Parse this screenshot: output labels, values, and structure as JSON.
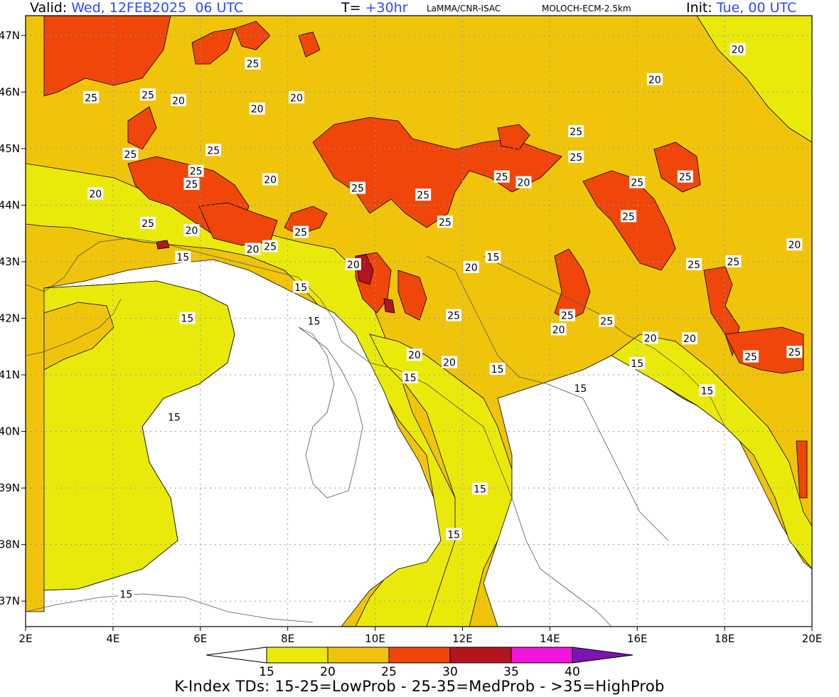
{
  "header": {
    "valid_label": "Valid:",
    "valid_value": "Wed, 12FEB2025  06 UTC",
    "t_label": "T=",
    "t_value": "+30hr",
    "source": "LaMMA/CNR-ISAC",
    "model": "MOLOCH-ECM-2.5km",
    "init_label": "Init:",
    "init_value": "Tue, 00 UTC"
  },
  "axes": {
    "lon_ticks": [
      "2E",
      "4E",
      "6E",
      "8E",
      "10E",
      "12E",
      "14E",
      "16E",
      "18E",
      "20E"
    ],
    "lat_ticks": [
      "47N",
      "46N",
      "45N",
      "44N",
      "43N",
      "42N",
      "41N",
      "40N",
      "39N",
      "38N",
      "37N"
    ]
  },
  "colorbar": {
    "ticks": [
      "15",
      "20",
      "25",
      "30",
      "35",
      "40"
    ],
    "colors": [
      "#ffffff",
      "#eaea0a",
      "#f0c40a",
      "#f0460a",
      "#b4141e",
      "#f014dc",
      "#7c14b4"
    ]
  },
  "contour_labels": [
    {
      "t": "25",
      "lon": 3.5,
      "lat": 45.9
    },
    {
      "t": "25",
      "lon": 4.8,
      "lat": 45.95
    },
    {
      "t": "20",
      "lon": 5.5,
      "lat": 45.85
    },
    {
      "t": "25",
      "lon": 7.2,
      "lat": 46.5
    },
    {
      "t": "20",
      "lon": 7.3,
      "lat": 45.7
    },
    {
      "t": "20",
      "lon": 8.2,
      "lat": 45.9
    },
    {
      "t": "25",
      "lon": 4.4,
      "lat": 44.9
    },
    {
      "t": "25",
      "lon": 6.3,
      "lat": 44.97
    },
    {
      "t": "25",
      "lon": 5.9,
      "lat": 44.6
    },
    {
      "t": "25",
      "lon": 5.8,
      "lat": 44.37
    },
    {
      "t": "20",
      "lon": 3.6,
      "lat": 44.2
    },
    {
      "t": "20",
      "lon": 7.6,
      "lat": 44.45
    },
    {
      "t": "25",
      "lon": 4.8,
      "lat": 43.68
    },
    {
      "t": "20",
      "lon": 5.8,
      "lat": 43.55
    },
    {
      "t": "25",
      "lon": 7.6,
      "lat": 43.27
    },
    {
      "t": "20",
      "lon": 7.2,
      "lat": 43.22
    },
    {
      "t": "25",
      "lon": 8.3,
      "lat": 43.52
    },
    {
      "t": "25",
      "lon": 9.6,
      "lat": 44.3
    },
    {
      "t": "25",
      "lon": 11.1,
      "lat": 44.18
    },
    {
      "t": "25",
      "lon": 11.6,
      "lat": 43.7
    },
    {
      "t": "20",
      "lon": 9.5,
      "lat": 42.95
    },
    {
      "t": "15",
      "lon": 5.6,
      "lat": 43.08
    },
    {
      "t": "15",
      "lon": 8.3,
      "lat": 42.55
    },
    {
      "t": "15",
      "lon": 5.7,
      "lat": 42
    },
    {
      "t": "15",
      "lon": 8.6,
      "lat": 41.95
    },
    {
      "t": "25",
      "lon": 12.9,
      "lat": 44.5
    },
    {
      "t": "25",
      "lon": 14.6,
      "lat": 45.3
    },
    {
      "t": "25",
      "lon": 14.6,
      "lat": 44.85
    },
    {
      "t": "20",
      "lon": 13.4,
      "lat": 44.4
    },
    {
      "t": "20",
      "lon": 12.2,
      "lat": 42.9
    },
    {
      "t": "15",
      "lon": 12.7,
      "lat": 43.08
    },
    {
      "t": "25",
      "lon": 11.8,
      "lat": 42.05
    },
    {
      "t": "20",
      "lon": 10.9,
      "lat": 41.35
    },
    {
      "t": "20",
      "lon": 11.7,
      "lat": 41.22
    },
    {
      "t": "15",
      "lon": 10.8,
      "lat": 40.95
    },
    {
      "t": "15",
      "lon": 12.8,
      "lat": 41.1
    },
    {
      "t": "25",
      "lon": 14.4,
      "lat": 42.05
    },
    {
      "t": "25",
      "lon": 15.3,
      "lat": 41.95
    },
    {
      "t": "20",
      "lon": 14.2,
      "lat": 41.8
    },
    {
      "t": "20",
      "lon": 16.3,
      "lat": 41.65
    },
    {
      "t": "20",
      "lon": 17.2,
      "lat": 41.64
    },
    {
      "t": "15",
      "lon": 16.0,
      "lat": 41.2
    },
    {
      "t": "15",
      "lon": 14.7,
      "lat": 40.76
    },
    {
      "t": "15",
      "lon": 17.6,
      "lat": 40.72
    },
    {
      "t": "25",
      "lon": 16.0,
      "lat": 44.4
    },
    {
      "t": "25",
      "lon": 17.1,
      "lat": 44.5
    },
    {
      "t": "25",
      "lon": 15.8,
      "lat": 43.8
    },
    {
      "t": "25",
      "lon": 17.3,
      "lat": 42.95
    },
    {
      "t": "25",
      "lon": 18.2,
      "lat": 43.0
    },
    {
      "t": "25",
      "lon": 18.6,
      "lat": 41.32
    },
    {
      "t": "25",
      "lon": 19.6,
      "lat": 41.4
    },
    {
      "t": "20",
      "lon": 19.6,
      "lat": 43.3
    },
    {
      "t": "20",
      "lon": 16.4,
      "lat": 46.22
    },
    {
      "t": "20",
      "lon": 18.3,
      "lat": 46.75
    },
    {
      "t": "15",
      "lon": 5.4,
      "lat": 40.25
    },
    {
      "t": "15",
      "lon": 12.4,
      "lat": 38.98
    },
    {
      "t": "15",
      "lon": 11.8,
      "lat": 38.18
    },
    {
      "t": "15",
      "lon": 4.3,
      "lat": 37.12
    }
  ],
  "footer": "K-Index TDs: 15-25=LowProb - 25-35=MedProb - >35=HighProb"
}
